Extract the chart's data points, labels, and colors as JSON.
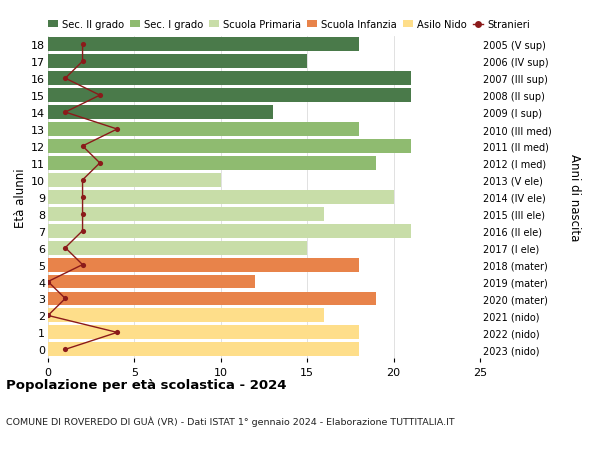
{
  "ages": [
    0,
    1,
    2,
    3,
    4,
    5,
    6,
    7,
    8,
    9,
    10,
    11,
    12,
    13,
    14,
    15,
    16,
    17,
    18
  ],
  "years": [
    "2023 (nido)",
    "2022 (nido)",
    "2021 (nido)",
    "2020 (mater)",
    "2019 (mater)",
    "2018 (mater)",
    "2017 (I ele)",
    "2016 (II ele)",
    "2015 (III ele)",
    "2014 (IV ele)",
    "2013 (V ele)",
    "2012 (I med)",
    "2011 (II med)",
    "2010 (III med)",
    "2009 (I sup)",
    "2008 (II sup)",
    "2007 (III sup)",
    "2006 (IV sup)",
    "2005 (V sup)"
  ],
  "bar_values": [
    18,
    18,
    16,
    19,
    12,
    18,
    15,
    21,
    16,
    20,
    10,
    19,
    21,
    18,
    13,
    21,
    21,
    15,
    18
  ],
  "bar_colors": [
    "#FEDE8A",
    "#FEDE8A",
    "#FEDE8A",
    "#E8834A",
    "#E8834A",
    "#E8834A",
    "#C8DDA8",
    "#C8DDA8",
    "#C8DDA8",
    "#C8DDA8",
    "#C8DDA8",
    "#8FBB70",
    "#8FBB70",
    "#8FBB70",
    "#4A7A4A",
    "#4A7A4A",
    "#4A7A4A",
    "#4A7A4A",
    "#4A7A4A"
  ],
  "stranieri_values": [
    1,
    4,
    0,
    1,
    0,
    2,
    1,
    2,
    2,
    2,
    2,
    3,
    2,
    4,
    1,
    3,
    1,
    2,
    2
  ],
  "stranieri_color": "#8B1A1A",
  "ylabel_left": "Età alunni",
  "ylabel_right": "Anni di nascita",
  "title": "Popolazione per età scolastica - 2024",
  "subtitle": "COMUNE DI ROVEREDO DI GUÀ (VR) - Dati ISTAT 1° gennaio 2024 - Elaborazione TUTTITALIA.IT",
  "xlim": [
    0,
    25
  ],
  "xticks": [
    0,
    5,
    10,
    15,
    20,
    25
  ],
  "bg_color": "#FFFFFF",
  "grid_color": "#DCDCDC",
  "legend_labels": [
    "Sec. II grado",
    "Sec. I grado",
    "Scuola Primaria",
    "Scuola Infanzia",
    "Asilo Nido",
    "Stranieri"
  ],
  "legend_colors": [
    "#4A7A4A",
    "#8FBB70",
    "#C8DDA8",
    "#E8834A",
    "#FEDE8A",
    "#8B1A1A"
  ]
}
